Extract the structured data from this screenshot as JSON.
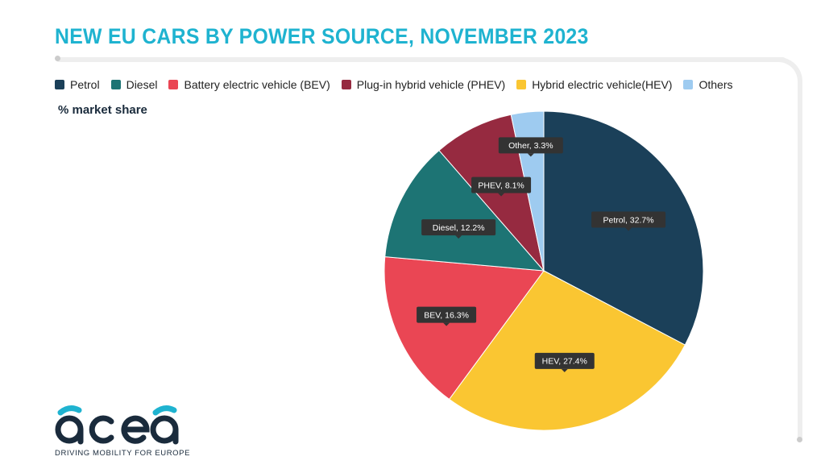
{
  "title": "NEW EU CARS BY POWER SOURCE, NOVEMBER 2023",
  "subtitle": "% market share",
  "legend": [
    {
      "label": "Petrol",
      "color": "#1b4059"
    },
    {
      "label": "Diesel",
      "color": "#1d7474"
    },
    {
      "label": "Battery electric vehicle (BEV)",
      "color": "#ea4654"
    },
    {
      "label": "Plug-in hybrid vehicle (PHEV)",
      "color": "#962a40"
    },
    {
      "label": "Hybrid electric vehicle(HEV)",
      "color": "#fac632"
    },
    {
      "label": "Others",
      "color": "#9ecbf0"
    }
  ],
  "chart_data": {
    "type": "pie",
    "slices": [
      {
        "name": "Petrol",
        "value": 32.7,
        "label": "Petrol, 32.7%",
        "color": "#1b4059"
      },
      {
        "name": "HEV",
        "value": 27.4,
        "label": "HEV, 27.4%",
        "color": "#fac632"
      },
      {
        "name": "BEV",
        "value": 16.3,
        "label": "BEV, 16.3%",
        "color": "#ea4654"
      },
      {
        "name": "Diesel",
        "value": 12.2,
        "label": "Diesel, 12.2%",
        "color": "#1d7474"
      },
      {
        "name": "PHEV",
        "value": 8.1,
        "label": "PHEV, 8.1%",
        "color": "#962a40"
      },
      {
        "name": "Other",
        "value": 3.3,
        "label": "Other, 3.3%",
        "color": "#9ecbf0"
      }
    ],
    "legend_position": "top"
  },
  "logo": {
    "text": "acea",
    "tagline": "DRIVING MOBILITY FOR EUROPE"
  }
}
